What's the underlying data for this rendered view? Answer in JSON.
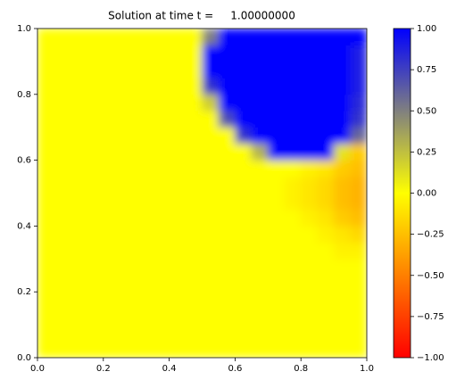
{
  "chart_data": {
    "type": "heatmap",
    "title": "Solution at time t =     1.00000000",
    "xlim": [
      0,
      1
    ],
    "ylim": [
      0,
      1
    ],
    "xticks": [
      {
        "value": 0,
        "label": "0.0"
      },
      {
        "value": 0.2,
        "label": "0.2"
      },
      {
        "value": 0.4,
        "label": "0.4"
      },
      {
        "value": 0.6,
        "label": "0.6"
      },
      {
        "value": 0.8,
        "label": "0.8"
      },
      {
        "value": 1,
        "label": "1.0"
      }
    ],
    "yticks": [
      {
        "value": 0,
        "label": "0.0"
      },
      {
        "value": 0.2,
        "label": "0.2"
      },
      {
        "value": 0.4,
        "label": "0.4"
      },
      {
        "value": 0.6,
        "label": "0.6"
      },
      {
        "value": 0.8,
        "label": "0.8"
      },
      {
        "value": 1,
        "label": "1.0"
      }
    ],
    "clim": [
      -1,
      1
    ],
    "colormap": [
      "#ff0000",
      "#ffff00",
      "#0000ff"
    ],
    "cticks": [
      {
        "value": -1,
        "label": "−1.00"
      },
      {
        "value": -0.75,
        "label": "−0.75"
      },
      {
        "value": -0.5,
        "label": "−0.50"
      },
      {
        "value": -0.25,
        "label": "−0.25"
      },
      {
        "value": 0,
        "label": "0.00"
      },
      {
        "value": 0.25,
        "label": "0.25"
      },
      {
        "value": 0.5,
        "label": "0.50"
      },
      {
        "value": 0.75,
        "label": "0.75"
      },
      {
        "value": 1,
        "label": "1.00"
      }
    ],
    "z": [
      [
        0,
        0,
        0,
        0,
        0,
        0,
        0,
        0,
        0,
        0,
        0,
        0,
        0,
        0,
        0,
        0,
        0,
        0,
        0,
        0
      ],
      [
        0,
        0,
        0,
        0,
        0,
        0,
        0,
        0,
        0,
        0,
        0,
        0,
        0,
        0,
        0,
        0,
        0,
        0,
        0,
        0
      ],
      [
        0,
        0,
        0,
        0,
        0,
        0,
        0,
        0,
        0,
        0,
        0,
        0,
        0,
        0,
        0,
        0,
        0,
        0,
        0,
        0
      ],
      [
        0,
        0,
        0,
        0,
        0,
        0,
        0,
        0,
        0,
        0,
        0,
        0,
        0,
        0,
        0,
        0,
        0,
        0,
        0,
        0
      ],
      [
        0,
        0,
        0,
        0,
        0,
        0,
        0,
        0,
        0,
        0,
        0,
        0,
        0,
        0,
        0,
        0,
        0,
        0,
        0,
        0
      ],
      [
        0,
        0,
        0,
        0,
        0,
        0,
        0,
        0,
        0,
        0,
        0,
        0,
        0,
        0,
        0,
        0,
        0,
        0,
        0,
        0
      ],
      [
        0,
        0,
        0,
        0,
        0,
        0,
        0,
        0,
        0,
        0,
        0,
        0,
        0,
        0,
        0,
        0,
        0,
        0,
        -0.05,
        -0.05
      ],
      [
        0,
        0,
        0,
        0,
        0,
        0,
        0,
        0,
        0,
        0,
        0,
        0,
        0,
        0,
        0,
        0,
        0,
        -0.05,
        -0.1,
        -0.15
      ],
      [
        0,
        0,
        0,
        0,
        0,
        0,
        0,
        0,
        0,
        0,
        0,
        0,
        0,
        0,
        0,
        0,
        -0.05,
        -0.1,
        -0.2,
        -0.25
      ],
      [
        0,
        0,
        0,
        0,
        0,
        0,
        0,
        0,
        0,
        0,
        0,
        0,
        0,
        0,
        0,
        -0.05,
        -0.1,
        -0.15,
        -0.25,
        -0.3
      ],
      [
        0,
        0,
        0,
        0,
        0,
        0,
        0,
        0,
        0,
        0,
        0,
        0,
        0,
        0,
        0,
        -0.05,
        -0.1,
        -0.15,
        -0.25,
        -0.3
      ],
      [
        0,
        0,
        0,
        0,
        0,
        0,
        0,
        0,
        0,
        0,
        0,
        0,
        0,
        0,
        0,
        0,
        -0.05,
        -0.1,
        -0.2,
        -0.25
      ],
      [
        0,
        0,
        0,
        0,
        0,
        0,
        0,
        0,
        0,
        0,
        0,
        0,
        0,
        0.3,
        1,
        1,
        1,
        1,
        0.1,
        -0.2
      ],
      [
        0,
        0,
        0,
        0,
        0,
        0,
        0,
        0,
        0,
        0,
        0,
        0,
        0.8,
        1,
        1,
        1,
        1,
        1,
        1,
        0.6
      ],
      [
        0,
        0,
        0,
        0,
        0,
        0,
        0,
        0,
        0,
        0,
        0,
        0.7,
        1,
        1,
        1,
        1,
        1,
        1,
        1,
        0.8
      ],
      [
        0,
        0,
        0,
        0,
        0,
        0,
        0,
        0,
        0,
        0,
        0.2,
        1,
        1,
        1,
        1,
        1,
        1,
        1,
        1,
        0.85
      ],
      [
        0,
        0,
        0,
        0,
        0,
        0,
        0,
        0,
        0,
        0,
        0.8,
        1,
        1,
        1,
        1,
        1,
        1,
        1,
        1,
        0.9
      ],
      [
        0,
        0,
        0,
        0,
        0,
        0,
        0,
        0,
        0,
        0,
        1,
        1,
        1,
        1,
        1,
        1,
        1,
        1,
        1,
        0.9
      ],
      [
        0,
        0,
        0,
        0,
        0,
        0,
        0,
        0,
        0,
        0,
        1,
        1,
        1,
        1,
        1,
        1,
        1,
        1,
        1,
        0.9
      ],
      [
        0,
        0,
        0,
        0,
        0,
        0,
        0,
        0,
        0,
        0,
        0.5,
        1,
        1,
        1,
        1,
        1,
        1,
        1,
        1,
        1
      ]
    ]
  }
}
